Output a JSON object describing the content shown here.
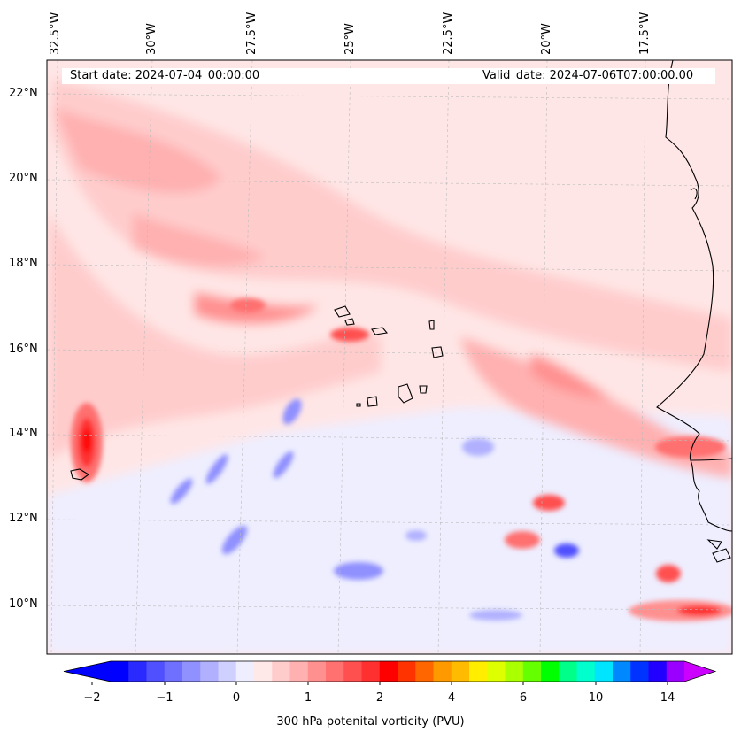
{
  "map": {
    "lon_labels": [
      "32.5°W",
      "30°W",
      "27.5°W",
      "25°W",
      "22.5°W",
      "20°W",
      "17.5°W"
    ],
    "lat_labels": [
      "22°N",
      "20°N",
      "18°N",
      "16°N",
      "14°N",
      "12°N",
      "10°N"
    ],
    "start_date": "Start date: 2024-07-04_00:00:00",
    "valid_date": "Valid_date: 2024-07-06T07:00:00.00",
    "field": "300 hPa potential vorticity",
    "colors": {
      "background_shade": "#ffe6e6",
      "coast": "#000000",
      "grid": "#bbbbbb"
    }
  },
  "colorbar": {
    "label": "300 hPa potenital vorticity (PVU)",
    "ticks": [
      "−2",
      "−1",
      "0",
      "1",
      "2",
      "4",
      "6",
      "10",
      "14"
    ],
    "colors": [
      "#0000ff",
      "#2a2aff",
      "#5050ff",
      "#7070ff",
      "#9090ff",
      "#b0b0ff",
      "#d0d0ff",
      "#eeeeff",
      "#ffe8e8",
      "#ffcccc",
      "#ffb0b0",
      "#ff9090",
      "#ff7070",
      "#ff5050",
      "#ff3030",
      "#ff0000",
      "#ff3300",
      "#ff6600",
      "#ff9900",
      "#ffbb00",
      "#ffee00",
      "#ddff00",
      "#aaff00",
      "#66ff00",
      "#00ff00",
      "#00ff88",
      "#00ffcc",
      "#00e5ff",
      "#0088ff",
      "#0033ff",
      "#2200ff",
      "#9900ff"
    ],
    "extend_min_color": "#0000ff",
    "extend_max_color": "#cc00ff"
  }
}
